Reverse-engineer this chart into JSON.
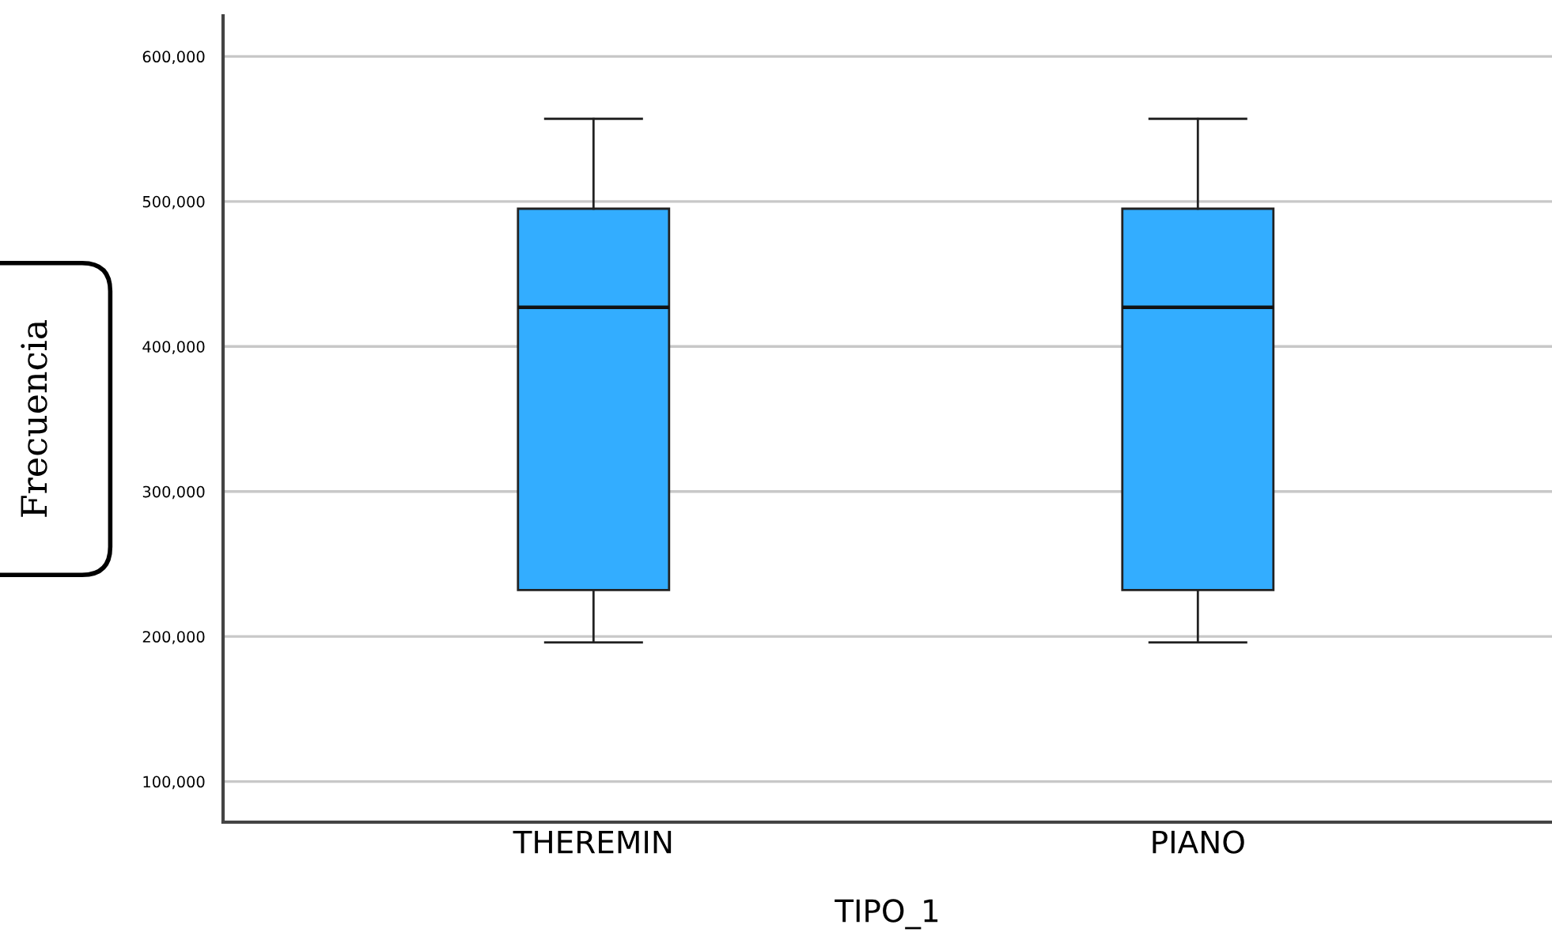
{
  "chart_data": {
    "type": "box",
    "xlabel": "TIPO_1",
    "ylabel": "Frecuencia",
    "categories": [
      "THEREMIN",
      "PIANO"
    ],
    "series": [
      {
        "color": "#33adff",
        "boxes": [
          {
            "low": 196000,
            "q1": 232000,
            "median": 427000,
            "q3": 495000,
            "high": 557000
          },
          {
            "low": 196000,
            "q1": 232000,
            "median": 427000,
            "q3": 495000,
            "high": 557000
          }
        ]
      }
    ],
    "ylim": [
      72000,
      628000
    ],
    "yticks": [
      {
        "value": 100000,
        "label": "100,000"
      },
      {
        "value": 200000,
        "label": "200,000"
      },
      {
        "value": 300000,
        "label": "300,000"
      },
      {
        "value": 400000,
        "label": "400,000"
      },
      {
        "value": 500000,
        "label": "500,000"
      },
      {
        "value": 600000,
        "label": "600,000"
      }
    ],
    "grid": "y",
    "legend": false
  }
}
